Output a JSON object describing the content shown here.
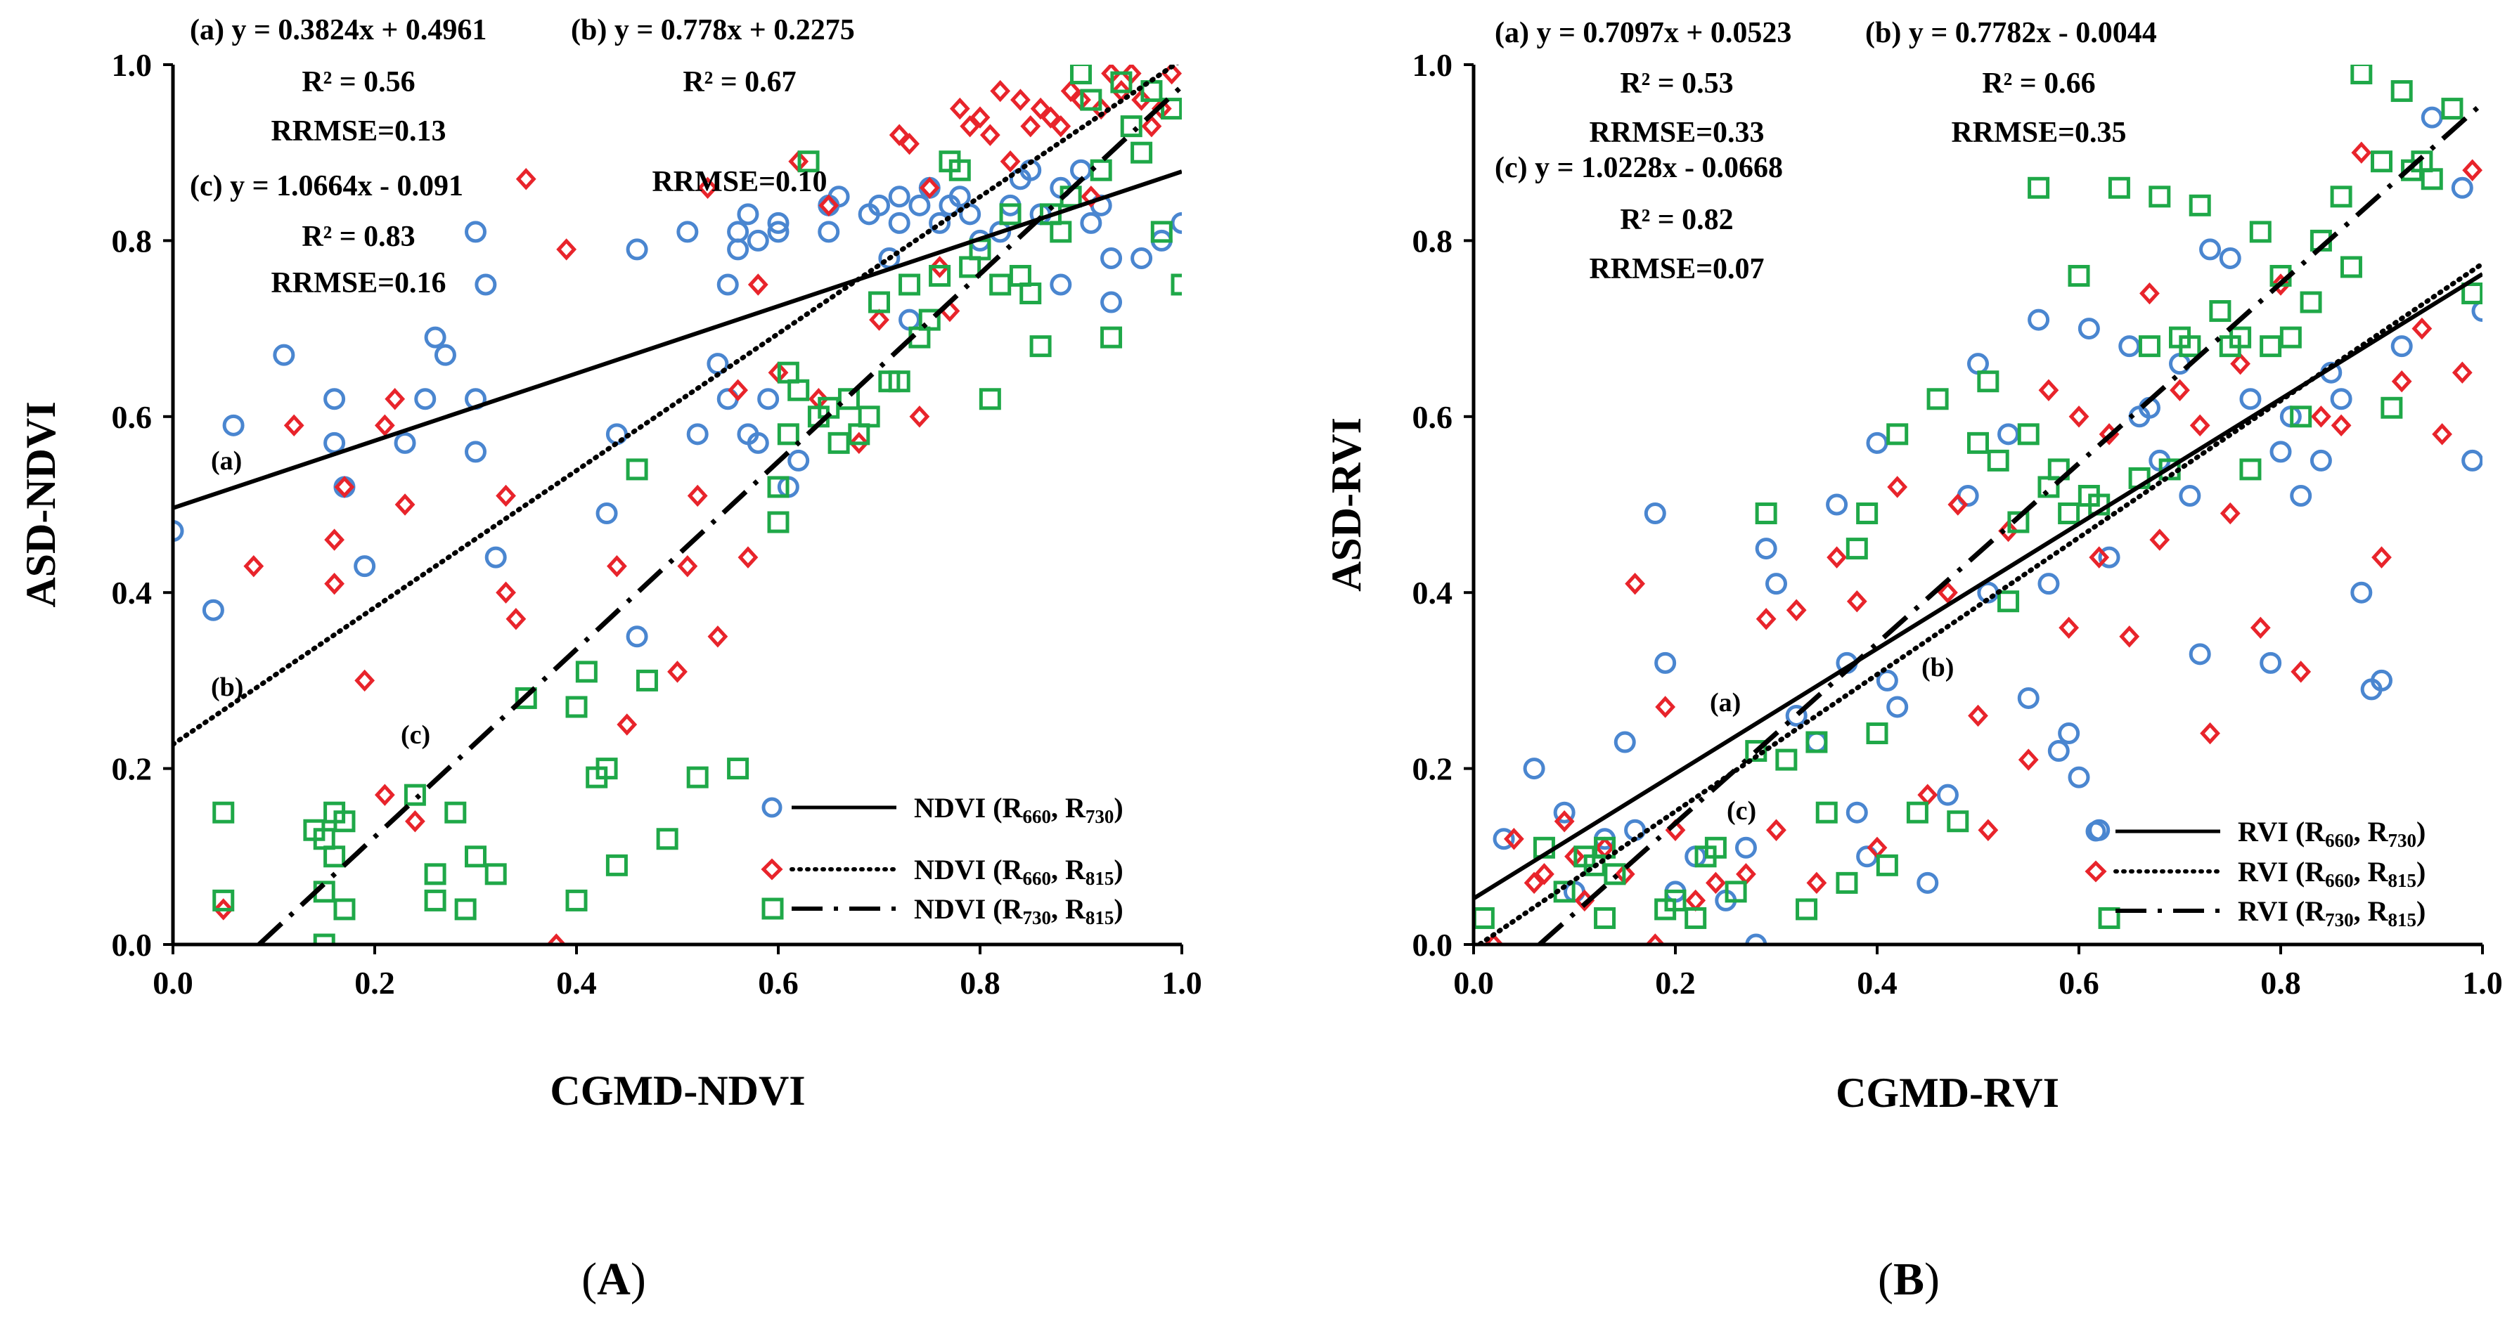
{
  "chart_data": [
    {
      "id": "A",
      "type": "scatter",
      "panel_label": "A",
      "xlabel": "CGMD-NDVI",
      "ylabel": "ASD-NDVI",
      "xlim": [
        0.0,
        1.0
      ],
      "ylim": [
        0.0,
        1.0
      ],
      "xticks": [
        "0.0",
        "0.2",
        "0.4",
        "0.6",
        "0.8",
        "1.0"
      ],
      "yticks": [
        "0.0",
        "0.2",
        "0.4",
        "0.6",
        "0.8",
        "1.0"
      ],
      "legend_position": "bottom-right",
      "annotations": [
        [
          "(a) y = 0.3824x + 0.4961",
          "R² = 0.56",
          "RRMSE=0.13"
        ],
        [
          "(b) y = 0.778x + 0.2275",
          "R² = 0.67",
          "RRMSE=0.10"
        ],
        [
          "(c) y = 1.0664x - 0.091",
          "R² = 0.83",
          "RRMSE=0.16"
        ]
      ],
      "series": [
        {
          "name": "NDVI (R660, R730)",
          "legend_main": "NDVI (R",
          "sub1": "660",
          "sub2": "730",
          "marker": "circle",
          "color": "#4a86d0",
          "line_style": "solid",
          "line_label": "(a)",
          "slope": 0.3824,
          "intercept": 0.4961,
          "line_x": [
            0.0,
            1.0
          ],
          "x": [
            0.0,
            0.04,
            0.06,
            0.11,
            0.16,
            0.16,
            0.17,
            0.19,
            0.23,
            0.25,
            0.26,
            0.27,
            0.3,
            0.3,
            0.3,
            0.31,
            0.32,
            0.43,
            0.44,
            0.46,
            0.46,
            0.51,
            0.52,
            0.54,
            0.55,
            0.55,
            0.56,
            0.56,
            0.57,
            0.57,
            0.58,
            0.58,
            0.59,
            0.6,
            0.6,
            0.61,
            0.62,
            0.65,
            0.65,
            0.66,
            0.69,
            0.7,
            0.71,
            0.72,
            0.72,
            0.73,
            0.74,
            0.75,
            0.76,
            0.77,
            0.78,
            0.79,
            0.8,
            0.82,
            0.83,
            0.84,
            0.85,
            0.86,
            0.88,
            0.88,
            0.9,
            0.91,
            0.92,
            0.93,
            0.93,
            0.96,
            0.98,
            1.0
          ],
          "y": [
            0.47,
            0.38,
            0.59,
            0.67,
            0.62,
            0.57,
            0.52,
            0.43,
            0.57,
            0.62,
            0.69,
            0.67,
            0.81,
            0.62,
            0.56,
            0.75,
            0.44,
            0.49,
            0.58,
            0.35,
            0.79,
            0.81,
            0.58,
            0.66,
            0.75,
            0.62,
            0.81,
            0.79,
            0.83,
            0.58,
            0.57,
            0.8,
            0.62,
            0.82,
            0.81,
            0.52,
            0.55,
            0.81,
            0.84,
            0.85,
            0.83,
            0.84,
            0.78,
            0.82,
            0.85,
            0.71,
            0.84,
            0.86,
            0.82,
            0.84,
            0.85,
            0.83,
            0.8,
            0.81,
            0.84,
            0.87,
            0.88,
            0.83,
            0.75,
            0.86,
            0.88,
            0.82,
            0.84,
            0.78,
            0.73,
            0.78,
            0.8,
            0.82
          ]
        },
        {
          "name": "NDVI (R660, R815)",
          "legend_main": "NDVI (R",
          "sub1": "660",
          "sub2": "815",
          "marker": "diamond",
          "color": "#e8242b",
          "line_style": "dotted",
          "line_label": "(b)",
          "slope": 0.778,
          "intercept": 0.2275,
          "line_x": [
            0.0,
            1.0
          ],
          "x": [
            0.05,
            0.08,
            0.12,
            0.16,
            0.16,
            0.17,
            0.19,
            0.21,
            0.21,
            0.22,
            0.23,
            0.24,
            0.33,
            0.33,
            0.34,
            0.35,
            0.38,
            0.39,
            0.44,
            0.45,
            0.5,
            0.51,
            0.52,
            0.53,
            0.54,
            0.56,
            0.57,
            0.58,
            0.6,
            0.62,
            0.64,
            0.65,
            0.68,
            0.7,
            0.72,
            0.73,
            0.74,
            0.75,
            0.76,
            0.77,
            0.78,
            0.79,
            0.8,
            0.81,
            0.82,
            0.83,
            0.84,
            0.85,
            0.86,
            0.87,
            0.88,
            0.89,
            0.9,
            0.91,
            0.92,
            0.93,
            0.94,
            0.95,
            0.96,
            0.97,
            0.98,
            0.99
          ],
          "y": [
            0.04,
            0.43,
            0.59,
            0.41,
            0.46,
            0.52,
            0.3,
            0.59,
            0.17,
            0.62,
            0.5,
            0.14,
            0.51,
            0.4,
            0.37,
            0.87,
            0.0,
            0.79,
            0.43,
            0.25,
            0.31,
            0.43,
            0.51,
            0.86,
            0.35,
            0.63,
            0.44,
            0.75,
            0.65,
            0.89,
            0.62,
            0.84,
            0.57,
            0.71,
            0.92,
            0.91,
            0.6,
            0.86,
            0.77,
            0.72,
            0.95,
            0.93,
            0.94,
            0.92,
            0.97,
            0.89,
            0.96,
            0.93,
            0.95,
            0.94,
            0.93,
            0.97,
            0.96,
            0.85,
            0.95,
            0.99,
            0.97,
            0.99,
            0.96,
            0.93,
            0.95,
            0.99
          ]
        },
        {
          "name": "NDVI (R730, R815)",
          "legend_main": "NDVI (R",
          "sub1": "730",
          "sub2": "815",
          "marker": "square",
          "color": "#1fa848",
          "line_style": "dashdot",
          "line_label": "(c)",
          "slope": 1.0664,
          "intercept": -0.091,
          "line_x": [
            0.0853,
            1.0
          ],
          "x": [
            0.05,
            0.05,
            0.14,
            0.15,
            0.15,
            0.15,
            0.16,
            0.16,
            0.17,
            0.17,
            0.24,
            0.26,
            0.26,
            0.28,
            0.29,
            0.3,
            0.32,
            0.35,
            0.4,
            0.4,
            0.41,
            0.42,
            0.43,
            0.44,
            0.46,
            0.47,
            0.49,
            0.52,
            0.56,
            0.6,
            0.6,
            0.61,
            0.61,
            0.62,
            0.63,
            0.64,
            0.65,
            0.66,
            0.67,
            0.68,
            0.69,
            0.7,
            0.71,
            0.72,
            0.73,
            0.74,
            0.75,
            0.76,
            0.77,
            0.78,
            0.79,
            0.8,
            0.81,
            0.82,
            0.83,
            0.84,
            0.85,
            0.86,
            0.87,
            0.88,
            0.89,
            0.9,
            0.91,
            0.92,
            0.93,
            0.94,
            0.95,
            0.96,
            0.97,
            0.98,
            0.99,
            1.0
          ],
          "y": [
            0.15,
            0.05,
            0.13,
            0.0,
            0.06,
            0.12,
            0.15,
            0.1,
            0.14,
            0.04,
            0.17,
            0.05,
            0.08,
            0.15,
            0.04,
            0.1,
            0.08,
            0.28,
            0.05,
            0.27,
            0.31,
            0.19,
            0.2,
            0.09,
            0.54,
            0.3,
            0.12,
            0.19,
            0.2,
            0.52,
            0.48,
            0.65,
            0.58,
            0.63,
            0.89,
            0.6,
            0.61,
            0.57,
            0.62,
            0.58,
            0.6,
            0.73,
            0.64,
            0.64,
            0.75,
            0.69,
            0.71,
            0.76,
            0.89,
            0.88,
            0.77,
            0.79,
            0.62,
            0.75,
            0.83,
            0.76,
            0.74,
            0.68,
            0.83,
            0.81,
            0.85,
            0.99,
            0.96,
            0.88,
            0.69,
            0.98,
            0.93,
            0.9,
            0.97,
            0.81,
            0.95,
            0.75
          ]
        }
      ]
    },
    {
      "id": "B",
      "type": "scatter",
      "panel_label": "B",
      "xlabel": "CGMD-RVI",
      "ylabel": "ASD-RVI",
      "xlim": [
        0.0,
        1.0
      ],
      "ylim": [
        0.0,
        1.0
      ],
      "xticks": [
        "0.0",
        "0.2",
        "0.4",
        "0.6",
        "0.8",
        "1.0"
      ],
      "yticks": [
        "0.0",
        "0.2",
        "0.4",
        "0.6",
        "0.8",
        "1.0"
      ],
      "legend_position": "bottom-right",
      "annotations": [
        [
          "(a) y = 0.7097x + 0.0523",
          "R² = 0.53",
          "RRMSE=0.33"
        ],
        [
          "(b) y = 0.7782x - 0.0044",
          "R² = 0.66",
          "RRMSE=0.35"
        ],
        [
          "(c) y = 1.0228x - 0.0668",
          "R² = 0.82",
          "RRMSE=0.07"
        ]
      ],
      "series": [
        {
          "name": "RVI (R660, R730)",
          "legend_main": "RVI (R",
          "sub1": "660",
          "sub2": "730",
          "marker": "circle",
          "color": "#4a86d0",
          "line_style": "solid",
          "line_label": "(a)",
          "slope": 0.7097,
          "intercept": 0.0523,
          "line_x": [
            0.0,
            1.0
          ],
          "x": [
            0.03,
            0.06,
            0.09,
            0.1,
            0.13,
            0.15,
            0.16,
            0.18,
            0.19,
            0.2,
            0.22,
            0.25,
            0.27,
            0.28,
            0.29,
            0.3,
            0.32,
            0.34,
            0.36,
            0.37,
            0.38,
            0.39,
            0.4,
            0.41,
            0.42,
            0.45,
            0.47,
            0.49,
            0.5,
            0.51,
            0.53,
            0.55,
            0.56,
            0.57,
            0.58,
            0.59,
            0.6,
            0.61,
            0.62,
            0.63,
            0.65,
            0.66,
            0.67,
            0.68,
            0.7,
            0.71,
            0.72,
            0.73,
            0.75,
            0.77,
            0.79,
            0.8,
            0.81,
            0.82,
            0.84,
            0.85,
            0.86,
            0.88,
            0.89,
            0.9,
            0.92,
            0.95,
            0.98,
            0.99,
            1.0
          ],
          "y": [
            0.12,
            0.2,
            0.15,
            0.06,
            0.12,
            0.23,
            0.13,
            0.49,
            0.32,
            0.06,
            0.1,
            0.05,
            0.11,
            0.0,
            0.45,
            0.41,
            0.26,
            0.23,
            0.5,
            0.32,
            0.15,
            0.1,
            0.57,
            0.3,
            0.27,
            0.07,
            0.17,
            0.51,
            0.66,
            0.4,
            0.58,
            0.28,
            0.71,
            0.41,
            0.22,
            0.24,
            0.19,
            0.7,
            0.13,
            0.44,
            0.68,
            0.6,
            0.61,
            0.55,
            0.66,
            0.51,
            0.33,
            0.79,
            0.78,
            0.62,
            0.32,
            0.56,
            0.6,
            0.51,
            0.55,
            0.65,
            0.62,
            0.4,
            0.29,
            0.3,
            0.68,
            0.94,
            0.86,
            0.55,
            0.72
          ]
        },
        {
          "name": "RVI (R660, R815)",
          "legend_main": "RVI (R",
          "sub1": "660",
          "sub2": "815",
          "marker": "diamond",
          "color": "#e8242b",
          "line_style": "dotted",
          "line_label": "(b)",
          "slope": 0.7782,
          "intercept": -0.0044,
          "line_x": [
            0.0,
            1.0
          ],
          "x": [
            0.02,
            0.04,
            0.06,
            0.07,
            0.09,
            0.1,
            0.11,
            0.13,
            0.15,
            0.16,
            0.18,
            0.19,
            0.2,
            0.22,
            0.24,
            0.27,
            0.29,
            0.3,
            0.32,
            0.34,
            0.36,
            0.38,
            0.4,
            0.42,
            0.45,
            0.47,
            0.48,
            0.5,
            0.51,
            0.53,
            0.55,
            0.57,
            0.59,
            0.6,
            0.62,
            0.63,
            0.65,
            0.67,
            0.68,
            0.7,
            0.72,
            0.73,
            0.75,
            0.76,
            0.78,
            0.8,
            0.82,
            0.84,
            0.86,
            0.88,
            0.9,
            0.92,
            0.94,
            0.96,
            0.98,
            0.99
          ],
          "y": [
            0.0,
            0.12,
            0.07,
            0.08,
            0.14,
            0.1,
            0.05,
            0.11,
            0.08,
            0.41,
            0.0,
            0.27,
            0.13,
            0.05,
            0.07,
            0.08,
            0.37,
            0.13,
            0.38,
            0.07,
            0.44,
            0.39,
            0.11,
            0.52,
            0.17,
            0.4,
            0.5,
            0.26,
            0.13,
            0.47,
            0.21,
            0.63,
            0.36,
            0.6,
            0.44,
            0.58,
            0.35,
            0.74,
            0.46,
            0.63,
            0.59,
            0.24,
            0.49,
            0.66,
            0.36,
            0.75,
            0.31,
            0.6,
            0.59,
            0.9,
            0.44,
            0.64,
            0.7,
            0.58,
            0.65,
            0.88
          ]
        },
        {
          "name": "RVI (R730, R815)",
          "legend_main": "RVI (R",
          "sub1": "730",
          "sub2": "815",
          "marker": "square",
          "color": "#1fa848",
          "line_style": "dashdot",
          "line_label": "(c)",
          "slope": 1.0228,
          "intercept": -0.0668,
          "line_x": [
            0.0653,
            1.0
          ],
          "x": [
            0.01,
            0.07,
            0.09,
            0.11,
            0.12,
            0.13,
            0.13,
            0.14,
            0.19,
            0.2,
            0.22,
            0.23,
            0.24,
            0.26,
            0.28,
            0.29,
            0.31,
            0.33,
            0.34,
            0.35,
            0.37,
            0.38,
            0.39,
            0.4,
            0.41,
            0.42,
            0.44,
            0.46,
            0.48,
            0.5,
            0.51,
            0.52,
            0.53,
            0.54,
            0.55,
            0.56,
            0.57,
            0.58,
            0.59,
            0.6,
            0.61,
            0.62,
            0.63,
            0.64,
            0.66,
            0.67,
            0.68,
            0.69,
            0.7,
            0.71,
            0.72,
            0.74,
            0.75,
            0.76,
            0.77,
            0.78,
            0.79,
            0.8,
            0.81,
            0.82,
            0.83,
            0.84,
            0.86,
            0.87,
            0.88,
            0.9,
            0.91,
            0.92,
            0.93,
            0.94,
            0.95,
            0.97,
            0.99
          ],
          "y": [
            0.03,
            0.11,
            0.06,
            0.1,
            0.09,
            0.11,
            0.03,
            0.08,
            0.04,
            0.05,
            0.03,
            0.1,
            0.11,
            0.06,
            0.22,
            0.49,
            0.21,
            0.04,
            0.23,
            0.15,
            0.07,
            0.45,
            0.49,
            0.24,
            0.09,
            0.58,
            0.15,
            0.62,
            0.14,
            0.57,
            0.64,
            0.55,
            0.39,
            0.48,
            0.58,
            0.86,
            0.52,
            0.54,
            0.49,
            0.76,
            0.51,
            0.5,
            0.03,
            0.86,
            0.53,
            0.68,
            0.85,
            0.54,
            0.69,
            0.68,
            0.84,
            0.72,
            0.68,
            0.69,
            0.54,
            0.81,
            0.68,
            0.76,
            0.69,
            0.6,
            0.73,
            0.8,
            0.85,
            0.77,
            0.99,
            0.89,
            0.61,
            0.97,
            0.88,
            0.89,
            0.87,
            0.95,
            0.74
          ]
        }
      ]
    }
  ]
}
